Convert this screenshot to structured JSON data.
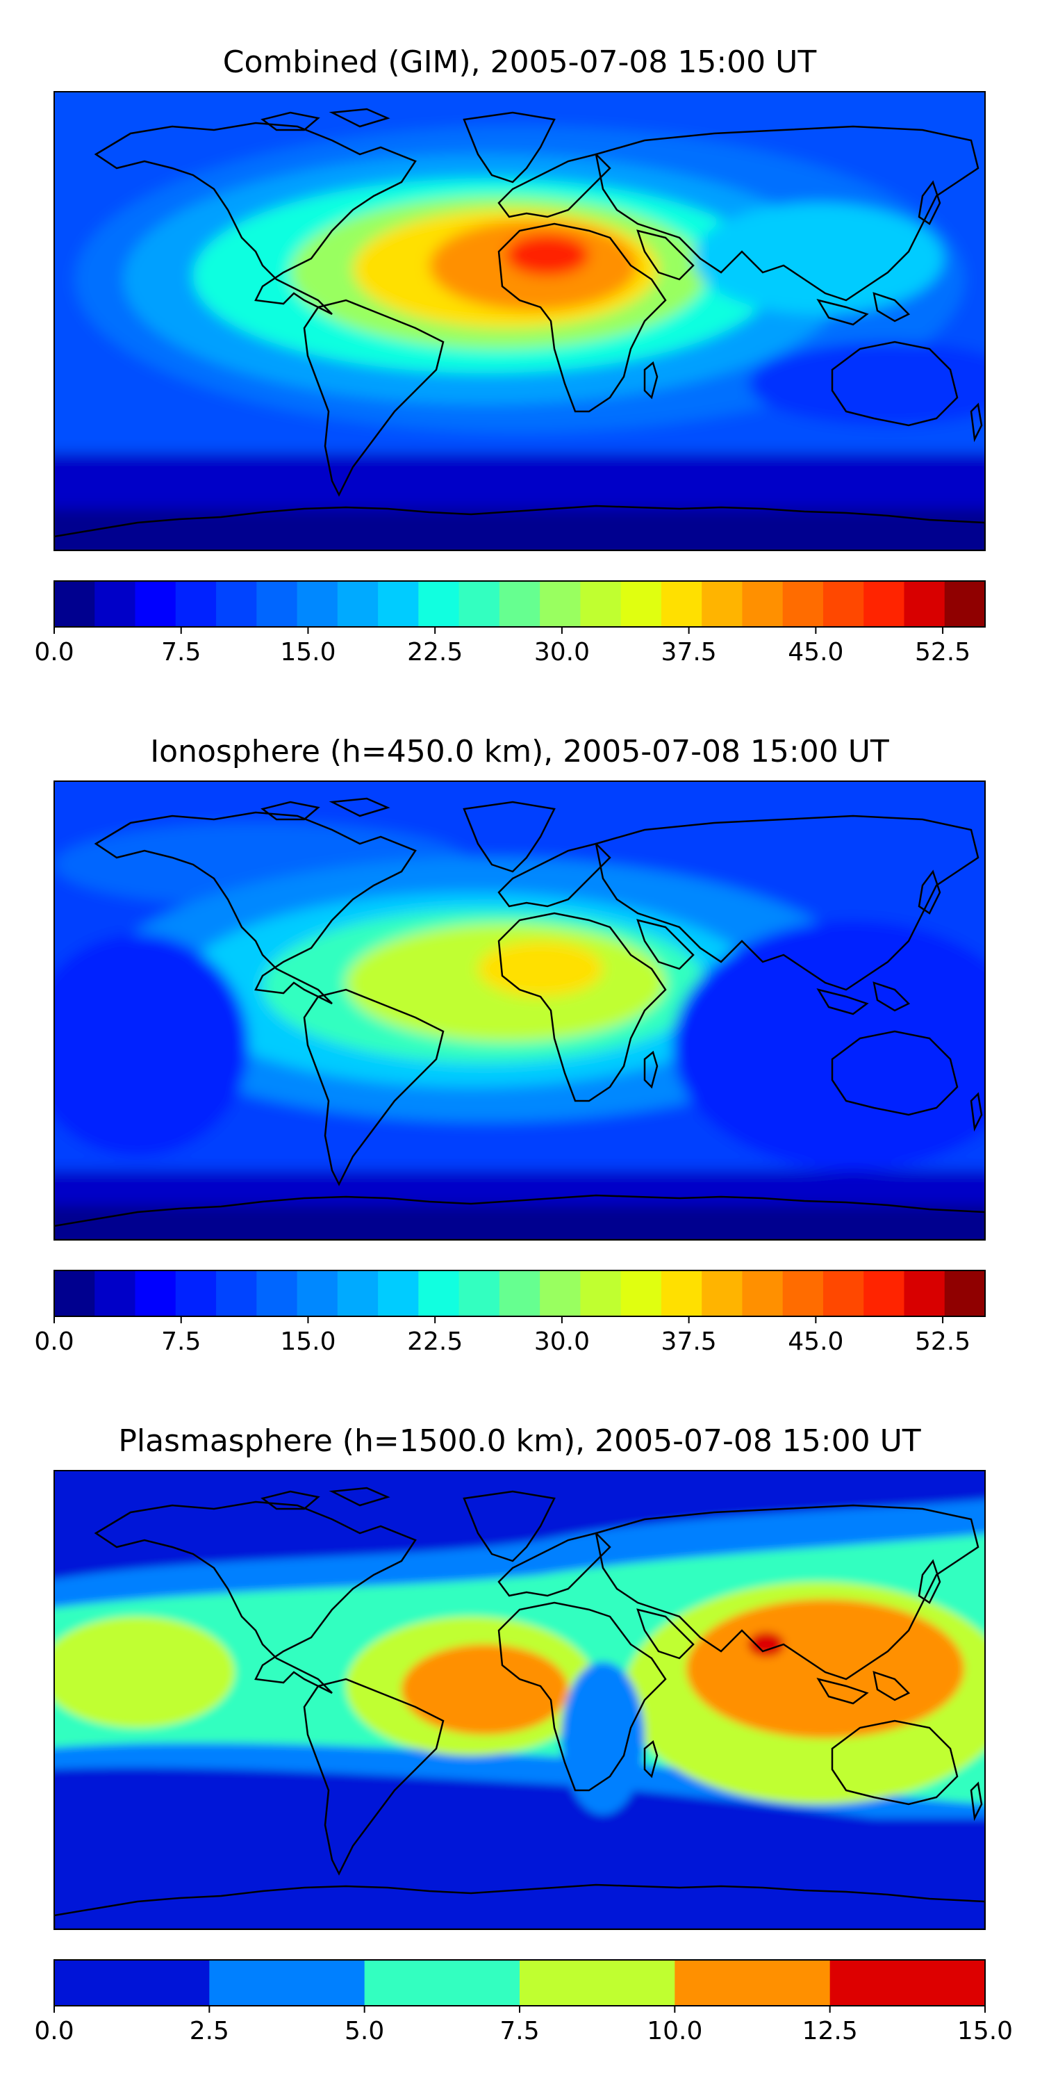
{
  "chart_data": [
    {
      "type": "heatmap",
      "title": "Combined (GIM), 2005-07-08 15:00 UT",
      "colorbar": {
        "min": 0,
        "max": 55,
        "step": 2.5,
        "ticks": [
          "0.0",
          "7.5",
          "15.0",
          "22.5",
          "30.0",
          "37.5",
          "45.0",
          "52.5"
        ],
        "tick_values": [
          0,
          7.5,
          15,
          22.5,
          30,
          37.5,
          45,
          52.5
        ],
        "colors": [
          "#00008f",
          "#0000c8",
          "#0000ff",
          "#0022ff",
          "#0044ff",
          "#0066ff",
          "#0088ff",
          "#00aaff",
          "#00ccff",
          "#11ffe0",
          "#33ffc0",
          "#66ff90",
          "#99ff60",
          "#c0ff30",
          "#e0ff10",
          "#ffe000",
          "#ffb400",
          "#ff9000",
          "#ff6c00",
          "#ff4800",
          "#ff2400",
          "#d80000",
          "#900000"
        ]
      },
      "legend": "colorbar-bottom",
      "peak_region": "West Africa"
    },
    {
      "type": "heatmap",
      "title": "Ionosphere  (h=450.0 km), 2005-07-08 15:00 UT",
      "colorbar": {
        "min": 0,
        "max": 55,
        "step": 2.5,
        "ticks": [
          "0.0",
          "7.5",
          "15.0",
          "22.5",
          "30.0",
          "37.5",
          "45.0",
          "52.5"
        ],
        "tick_values": [
          0,
          7.5,
          15,
          22.5,
          30,
          37.5,
          45,
          52.5
        ],
        "colors": [
          "#00008f",
          "#0000c8",
          "#0000ff",
          "#0022ff",
          "#0044ff",
          "#0066ff",
          "#0088ff",
          "#00aaff",
          "#00ccff",
          "#11ffe0",
          "#33ffc0",
          "#66ff90",
          "#99ff60",
          "#c0ff30",
          "#e0ff10",
          "#ffe000",
          "#ffb400",
          "#ff9000",
          "#ff6c00",
          "#ff4800",
          "#ff2400",
          "#d80000",
          "#900000"
        ]
      },
      "legend": "colorbar-bottom",
      "peak_region": "West Africa"
    },
    {
      "type": "heatmap",
      "title": "Plasmasphere (h=1500.0 km), 2005-07-08 15:00 UT",
      "colorbar": {
        "min": 0,
        "max": 15,
        "step": 2.5,
        "ticks": [
          "0.0",
          "2.5",
          "5.0",
          "7.5",
          "10.0",
          "12.5",
          "15.0"
        ],
        "tick_values": [
          0,
          2.5,
          5,
          7.5,
          10,
          12.5,
          15
        ],
        "colors": [
          "#0014d8",
          "#0080ff",
          "#33ffc0",
          "#c0ff30",
          "#ff9000",
          "#dd0000"
        ]
      },
      "legend": "colorbar-bottom",
      "peak_region": "South Asia"
    }
  ]
}
